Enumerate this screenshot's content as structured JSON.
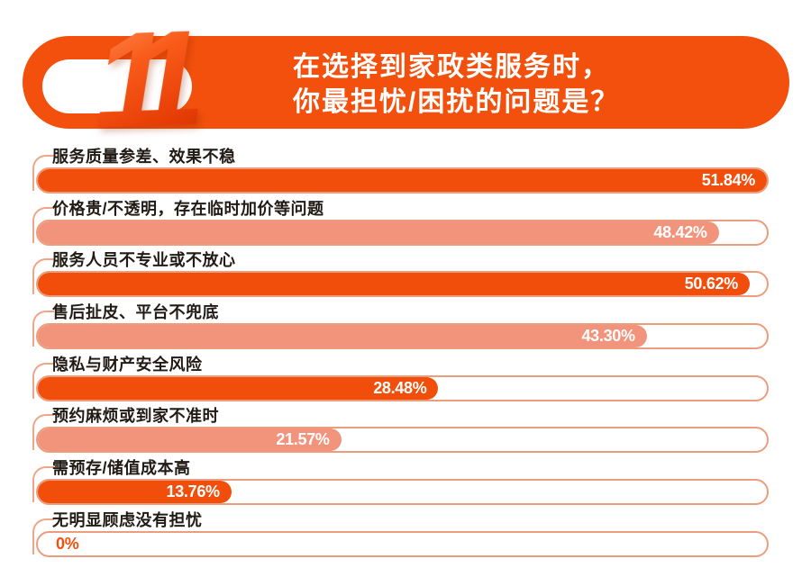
{
  "header": {
    "question_number": "11",
    "title_line1": "在选择到家政类服务时，",
    "title_line2": "你最担忧/困扰的问题是？"
  },
  "colors": {
    "banner_orange": "#f2500c",
    "bar_solid": "#f24e0b",
    "bar_light": "#f2937c",
    "track_border": "#ec9d7e",
    "bracket": "#f0a589",
    "label_text": "#221b15",
    "value_text_on_bar": "#ffffff",
    "zero_value_text": "#f2500c"
  },
  "chart_data": {
    "type": "bar",
    "orientation": "horizontal",
    "title": "在选择到家政类服务时，你最担忧/困扰的问题是？",
    "question_number": "11",
    "unit": "%",
    "xlim": [
      0,
      51.84
    ],
    "grid": false,
    "legend": false,
    "categories": [
      "服务质量参差、效果不稳",
      "价格贵/不透明，存在临时加价等问题",
      "服务人员不专业或不放心",
      "售后扯皮、平台不兜底",
      "隐私与财产安全风险",
      "预约麻烦或到家不准时",
      "需预存/储值成本高",
      "无明显顾虑没有担忧"
    ],
    "values": [
      51.84,
      48.42,
      50.62,
      43.3,
      28.48,
      21.57,
      13.76,
      0
    ],
    "value_labels": [
      "51.84%",
      "48.42%",
      "50.62%",
      "43.30%",
      "28.48%",
      "21.57%",
      "13.76%",
      "0%"
    ],
    "bar_styles": [
      "solid",
      "light",
      "solid",
      "light",
      "solid",
      "light",
      "solid",
      "none"
    ]
  }
}
